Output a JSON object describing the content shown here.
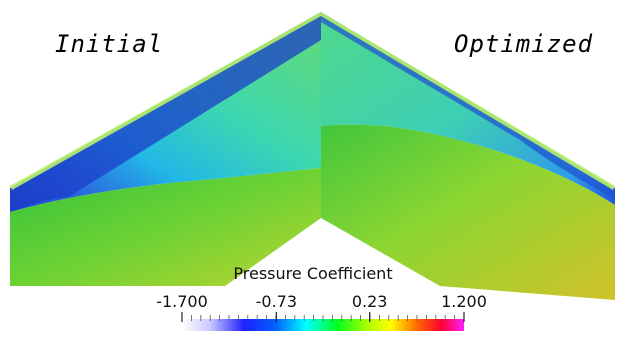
{
  "labels": {
    "left": "Initial",
    "right": "Optimized"
  },
  "legend": {
    "title": "Pressure Coefficient",
    "ticks": [
      {
        "value": -1.7,
        "text": "-1.700"
      },
      {
        "value": -0.73,
        "text": "-0.73"
      },
      {
        "value": 0.23,
        "text": "0.23"
      },
      {
        "value": 1.2,
        "text": "1.200"
      }
    ],
    "range": [
      -1.7,
      1.2
    ],
    "colors": [
      "#ffffff",
      "#0000ff",
      "#00ffff",
      "#00ff00",
      "#ffff00",
      "#ff0000",
      "#ff00ff"
    ]
  }
}
